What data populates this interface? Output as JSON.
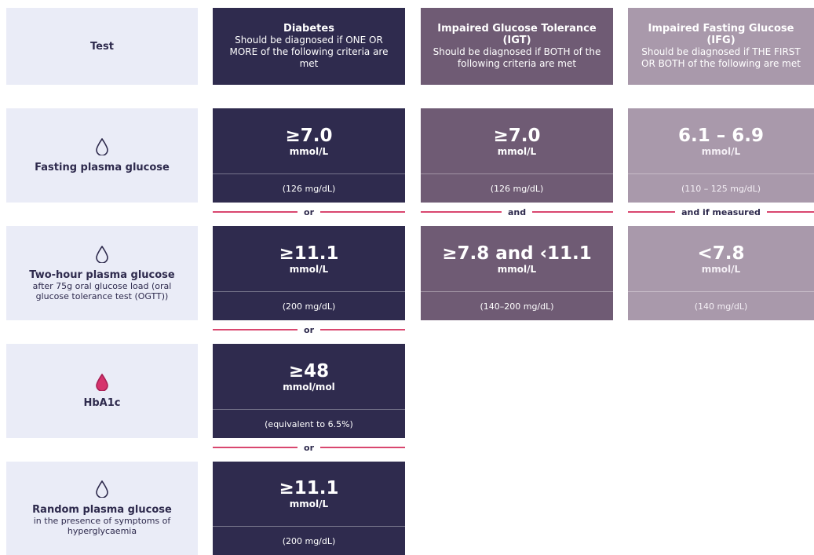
{
  "header": {
    "test": "Test",
    "columns": [
      {
        "title": "Diabetes",
        "subtitle": "Should be diagnosed if ONE OR MORE of the following criteria are met"
      },
      {
        "title": "Impaired Glucose Tolerance (IGT)",
        "subtitle": "Should be diagnosed if BOTH of the following criteria are met"
      },
      {
        "title": "Impaired Fasting Glucose (IFG)",
        "subtitle": "Should be diagnosed if THE FIRST OR BOTH of the following are met"
      }
    ]
  },
  "rows": [
    {
      "name": "Fasting plasma glucose",
      "cells": [
        {
          "value": "≥7.0",
          "unit": "mmol/L",
          "sub": "(126 mg/dL)"
        },
        {
          "value": "≥7.0",
          "unit": "mmol/L",
          "sub": "(126 mg/dL)"
        },
        {
          "value": "6.1 – 6.9",
          "unit": "mmol/L",
          "sub": "(110 – 125 mg/dL)"
        }
      ],
      "connectors": [
        "or",
        "and",
        "and if measured"
      ]
    },
    {
      "name": "Two-hour plasma glucose",
      "note": "after 75g oral glucose load (oral glucose tolerance test (OGTT))",
      "cells": [
        {
          "value": "≥11.1",
          "unit": "mmol/L",
          "sub": "(200 mg/dL)"
        },
        {
          "value": "≥7.8 and ‹11.1",
          "unit": "mmol/L",
          "sub": "(140–200 mg/dL)"
        },
        {
          "value": "<7.8",
          "unit": "mmol/L",
          "sub": "(140 mg/dL)"
        }
      ],
      "connectors": [
        "or"
      ]
    },
    {
      "name": "HbA1c",
      "cells": [
        {
          "value": "≥48",
          "unit": "mmol/mol",
          "sub": "(equivalent to 6.5%)"
        }
      ],
      "connectors": [
        "or"
      ]
    },
    {
      "name": "Random plasma glucose",
      "note": "in the presence of symptoms of hyperglycaemia",
      "cells": [
        {
          "value": "≥11.1",
          "unit": "mmol/L",
          "sub": "(200 mg/dL)"
        }
      ]
    }
  ]
}
